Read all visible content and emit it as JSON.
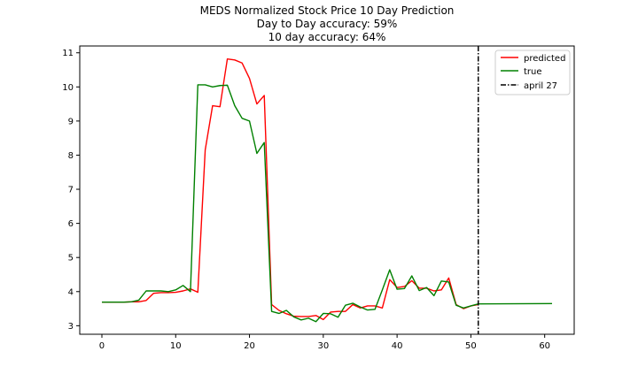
{
  "chart_data": {
    "type": "line",
    "title_lines": [
      "MEDS Normalized Stock Price 10 Day Prediction",
      "Day to Day accuracy: 59%",
      "10 day accuracy: 64%"
    ],
    "xlabel": "",
    "ylabel": "",
    "xlim": [
      -3,
      64
    ],
    "ylim": [
      2.75,
      11.2
    ],
    "x_ticks": [
      0,
      10,
      20,
      30,
      40,
      50,
      60
    ],
    "y_ticks": [
      3,
      4,
      5,
      6,
      7,
      8,
      9,
      10,
      11
    ],
    "grid": false,
    "legend_position": "top-right",
    "series": [
      {
        "name": "predicted",
        "color": "#ff0000",
        "points": [
          [
            0,
            3.69
          ],
          [
            1,
            3.69
          ],
          [
            2,
            3.69
          ],
          [
            3,
            3.69
          ],
          [
            4,
            3.7
          ],
          [
            5,
            3.7
          ],
          [
            6,
            3.74
          ],
          [
            7,
            3.95
          ],
          [
            8,
            3.97
          ],
          [
            9,
            3.97
          ],
          [
            10,
            3.98
          ],
          [
            11,
            4.02
          ],
          [
            12,
            4.08
          ],
          [
            13,
            3.98
          ],
          [
            14,
            8.15
          ],
          [
            15,
            9.45
          ],
          [
            16,
            9.42
          ],
          [
            17,
            10.82
          ],
          [
            18,
            10.79
          ],
          [
            19,
            10.7
          ],
          [
            20,
            10.25
          ],
          [
            21,
            9.5
          ],
          [
            22,
            9.75
          ],
          [
            23,
            3.62
          ],
          [
            24,
            3.45
          ],
          [
            25,
            3.35
          ],
          [
            26,
            3.28
          ],
          [
            27,
            3.27
          ],
          [
            28,
            3.27
          ],
          [
            29,
            3.3
          ],
          [
            30,
            3.18
          ],
          [
            31,
            3.4
          ],
          [
            32,
            3.42
          ],
          [
            33,
            3.42
          ],
          [
            34,
            3.62
          ],
          [
            35,
            3.52
          ],
          [
            36,
            3.58
          ],
          [
            37,
            3.58
          ],
          [
            38,
            3.52
          ],
          [
            39,
            4.35
          ],
          [
            40,
            4.12
          ],
          [
            41,
            4.15
          ],
          [
            42,
            4.32
          ],
          [
            43,
            4.1
          ],
          [
            44,
            4.1
          ],
          [
            45,
            4.02
          ],
          [
            46,
            4.05
          ],
          [
            47,
            4.4
          ],
          [
            48,
            3.62
          ],
          [
            49,
            3.5
          ],
          [
            50,
            3.58
          ],
          [
            51,
            3.62
          ]
        ]
      },
      {
        "name": "true",
        "color": "#008000",
        "points": [
          [
            0,
            3.69
          ],
          [
            1,
            3.69
          ],
          [
            2,
            3.69
          ],
          [
            3,
            3.69
          ],
          [
            4,
            3.7
          ],
          [
            5,
            3.75
          ],
          [
            6,
            4.02
          ],
          [
            7,
            4.02
          ],
          [
            8,
            4.02
          ],
          [
            9,
            4.0
          ],
          [
            10,
            4.05
          ],
          [
            11,
            4.18
          ],
          [
            12,
            4.0
          ],
          [
            13,
            10.06
          ],
          [
            14,
            10.06
          ],
          [
            15,
            10.0
          ],
          [
            16,
            10.04
          ],
          [
            17,
            10.05
          ],
          [
            18,
            9.45
          ],
          [
            19,
            9.08
          ],
          [
            20,
            9.0
          ],
          [
            21,
            8.05
          ],
          [
            22,
            8.37
          ],
          [
            23,
            3.42
          ],
          [
            24,
            3.36
          ],
          [
            25,
            3.45
          ],
          [
            26,
            3.26
          ],
          [
            27,
            3.17
          ],
          [
            28,
            3.22
          ],
          [
            29,
            3.12
          ],
          [
            30,
            3.36
          ],
          [
            31,
            3.35
          ],
          [
            32,
            3.25
          ],
          [
            33,
            3.6
          ],
          [
            34,
            3.66
          ],
          [
            35,
            3.55
          ],
          [
            36,
            3.46
          ],
          [
            37,
            3.48
          ],
          [
            38,
            4.05
          ],
          [
            39,
            4.64
          ],
          [
            40,
            4.07
          ],
          [
            41,
            4.09
          ],
          [
            42,
            4.46
          ],
          [
            43,
            4.03
          ],
          [
            44,
            4.12
          ],
          [
            45,
            3.88
          ],
          [
            46,
            4.31
          ],
          [
            47,
            4.28
          ],
          [
            48,
            3.6
          ],
          [
            49,
            3.52
          ],
          [
            50,
            3.58
          ],
          [
            51,
            3.64
          ],
          [
            61,
            3.65
          ]
        ]
      },
      {
        "name": "april 27",
        "color": "#000000",
        "style": "dash-dot",
        "vertical_x": 51
      }
    ]
  }
}
